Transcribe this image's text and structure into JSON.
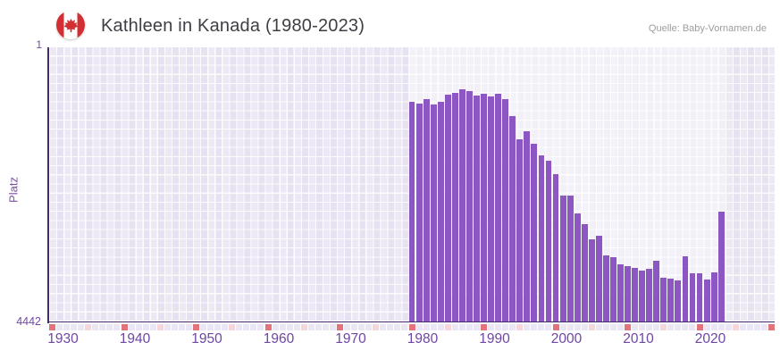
{
  "header": {
    "title": "Kathleen in Kanada (1980-2023)",
    "source": "Quelle: Baby-Vornamen.de",
    "flag_icon": "canada-flag-icon"
  },
  "chart_data": {
    "type": "bar",
    "title": "Kathleen in Kanada (1980-2023)",
    "xlabel": "",
    "ylabel": "Platz",
    "y_axis": {
      "top_label": "1",
      "bottom_label": "4442",
      "min": 1,
      "max": 4442,
      "inverted": true,
      "note": "rank scale: 1 (best) at top, 4442 at bottom; bar height = rank quality"
    },
    "x_axis": {
      "start_year": 1930,
      "end_year": 2030,
      "tick_labels": [
        "1930",
        "1940",
        "1950",
        "1960",
        "1970",
        "1980",
        "1990",
        "2000",
        "2010",
        "2020"
      ],
      "decade_marker_years_ending_in": 0,
      "half_decade_marker_years_ending_in": 5
    },
    "highlighted_range": [
      1980,
      2024
    ],
    "series": [
      {
        "name": "Platz",
        "x": [
          1980,
          1981,
          1982,
          1983,
          1984,
          1985,
          1986,
          1987,
          1988,
          1989,
          1990,
          1991,
          1992,
          1993,
          1994,
          1995,
          1996,
          1997,
          1998,
          1999,
          2000,
          2001,
          2002,
          2003,
          2004,
          2005,
          2006,
          2007,
          2008,
          2009,
          2010,
          2011,
          2012,
          2013,
          2014,
          2015,
          2016,
          2017,
          2018,
          2019,
          2020,
          2021,
          2022,
          2023
        ],
        "values": [
          880,
          910,
          845,
          925,
          890,
          765,
          735,
          680,
          710,
          775,
          760,
          795,
          760,
          845,
          1120,
          1485,
          1360,
          1570,
          1745,
          1835,
          2050,
          2405,
          2405,
          2690,
          2870,
          3110,
          3050,
          3375,
          3400,
          3520,
          3540,
          3580,
          3620,
          3585,
          3455,
          3740,
          3745,
          3775,
          3385,
          3665,
          3660,
          3765,
          3640,
          2665
        ]
      }
    ],
    "legend": "none",
    "grid": "on",
    "colors": {
      "bar": "#8c57c3",
      "axis_line": "#452a6e",
      "axis_text": "#6f46a3",
      "plot_bg": "#e7e2f1",
      "plot_bg_highlight": "#f3f0f9",
      "strip_default": "#ebe6f3",
      "strip_half_decade": "#f5d6dc",
      "strip_decade": "#e2737a",
      "flag_red": "#d22f34"
    }
  }
}
